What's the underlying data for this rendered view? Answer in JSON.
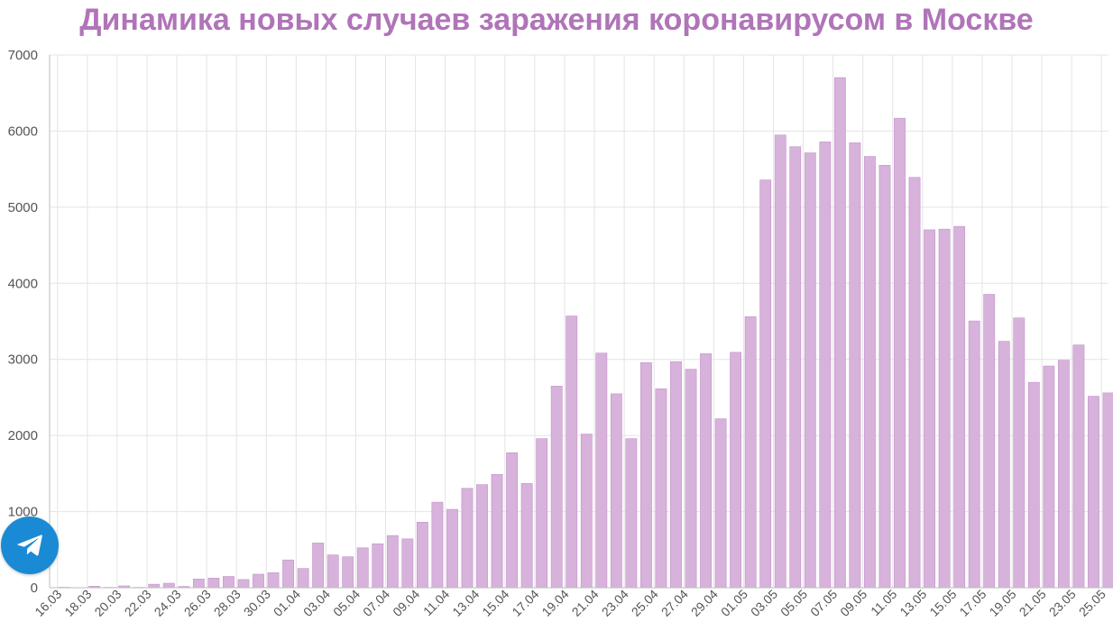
{
  "title": "Динамика новых случаев заражения коронавирусом в Москве",
  "colors": {
    "title": "#b074b8",
    "bar": "#d7b2db",
    "bar_edge": "#c493cb",
    "grid": "#e4e4e4",
    "axis_text": "#555555",
    "telegram": "#1a8ad5"
  },
  "telegram_button": {
    "icon": "telegram-paper-plane-icon"
  },
  "chart_data": {
    "type": "bar",
    "title": "Динамика новых случаев заражения коронавирусом в Москве",
    "xlabel": "",
    "ylabel": "",
    "ylim": [
      0,
      7000
    ],
    "yticks": [
      0,
      1000,
      2000,
      3000,
      4000,
      5000,
      6000,
      7000
    ],
    "grid": true,
    "legend": "none",
    "categories": [
      "16.03",
      "17.03",
      "18.03",
      "19.03",
      "20.03",
      "21.03",
      "22.03",
      "23.03",
      "24.03",
      "25.03",
      "26.03",
      "27.03",
      "28.03",
      "29.03",
      "30.03",
      "31.03",
      "01.04",
      "02.04",
      "03.04",
      "04.04",
      "05.04",
      "06.04",
      "07.04",
      "08.04",
      "09.04",
      "10.04",
      "11.04",
      "12.04",
      "13.04",
      "14.04",
      "15.04",
      "16.04",
      "17.04",
      "18.04",
      "19.04",
      "20.04",
      "21.04",
      "22.04",
      "23.04",
      "24.04",
      "25.04",
      "26.04",
      "27.04",
      "28.04",
      "29.04",
      "30.04",
      "01.05",
      "02.05",
      "03.05",
      "04.05",
      "05.05",
      "06.05",
      "07.05",
      "08.05",
      "09.05",
      "10.05",
      "11.05",
      "12.05",
      "13.05",
      "14.05",
      "15.05",
      "16.05",
      "17.05",
      "18.05",
      "19.05",
      "20.05",
      "21.05",
      "22.05",
      "23.05",
      "24.05",
      "25.05"
    ],
    "tick_labels": [
      "16.03",
      "18.03",
      "20.03",
      "22.03",
      "24.03",
      "26.03",
      "28.03",
      "30.03",
      "01.04",
      "03.04",
      "05.04",
      "07.04",
      "09.04",
      "11.04",
      "13.04",
      "15.04",
      "17.04",
      "19.04",
      "21.04",
      "23.04",
      "25.04",
      "27.04",
      "29.04",
      "01.05",
      "03.05",
      "05.05",
      "07.05",
      "09.05",
      "11.05",
      "13.05",
      "15.05",
      "17.05",
      "19.05",
      "21.05",
      "23.05",
      "25.05"
    ],
    "values": [
      6,
      0,
      20,
      5,
      24,
      5,
      46,
      59,
      17,
      114,
      126,
      148,
      108,
      178,
      197,
      365,
      253,
      588,
      431,
      407,
      524,
      578,
      686,
      642,
      861,
      1124,
      1030,
      1306,
      1355,
      1489,
      1774,
      1370,
      1959,
      2649,
      3570,
      2019,
      3083,
      2548,
      1959,
      2957,
      2614,
      2971,
      2871,
      3075,
      2220,
      3093,
      3561,
      5358,
      5948,
      5795,
      5714,
      5858,
      6703,
      5846,
      5667,
      5551,
      6169,
      5392,
      4703,
      4712,
      4748,
      3505,
      3855,
      3238,
      3545,
      2699,
      2913,
      2988,
      3190,
      2516,
      2560
    ]
  }
}
